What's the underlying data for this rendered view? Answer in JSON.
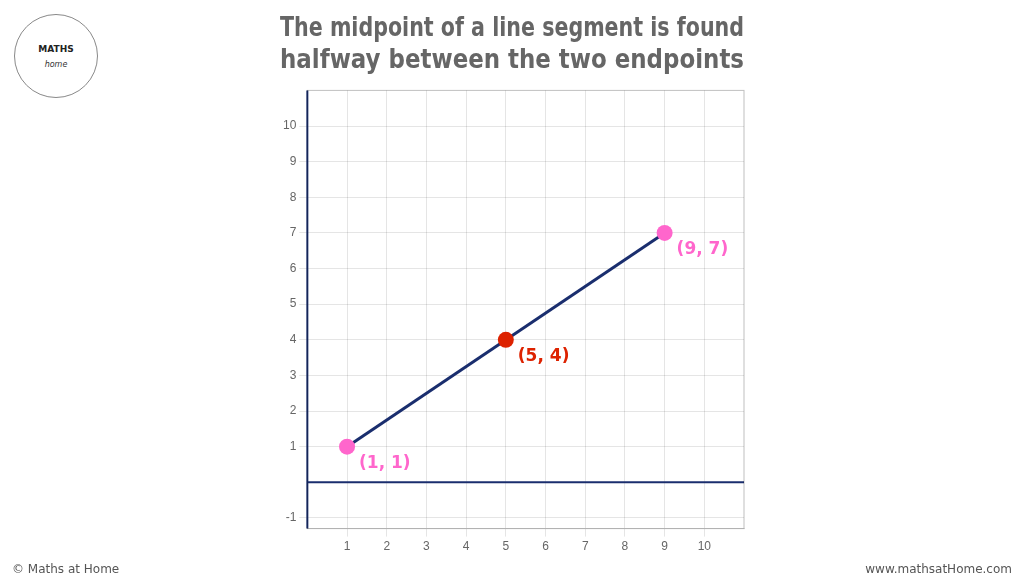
{
  "chart_data": {
    "type": "scatter",
    "title": [
      "The midpoint of a line segment is found",
      "halfway between the two endpoints"
    ],
    "annotations": [
      "MATHS",
      "home",
      "© Maths at Home",
      "www.mathsatHome.com"
    ],
    "series": [
      {
        "type": "line",
        "color": "#1a2e6e",
        "x": [
          1,
          9
        ],
        "values": [
          1,
          7
        ]
      },
      {
        "color": "#ff66cc",
        "marker": "circle",
        "x": [
          1,
          9
        ],
        "values": [
          1,
          7
        ],
        "value_labels": [
          "(1, 1)",
          "(9, 7)"
        ]
      },
      {
        "color": "#dd2200",
        "marker": "circle",
        "x": [
          5
        ],
        "values": [
          4
        ],
        "value_labels": [
          "(5, 4)"
        ]
      }
    ],
    "xlim": [
      0,
      11
    ],
    "ylim": [
      -1.3,
      11
    ],
    "xticks": [
      1,
      2,
      3,
      4,
      5,
      6,
      7,
      8,
      9,
      10
    ],
    "yticks": [
      -1,
      1,
      2,
      3,
      4,
      5,
      6,
      7,
      8,
      9,
      10
    ],
    "grid": true,
    "data_labels": true
  }
}
